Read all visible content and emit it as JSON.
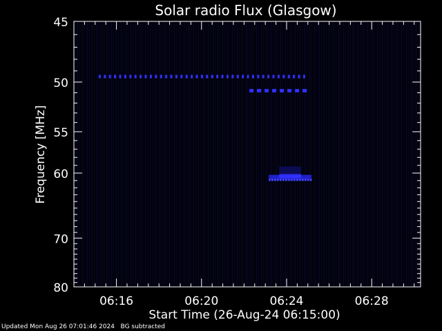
{
  "chart_data": {
    "type": "heatmap",
    "title": "Solar radio Flux (Glasgow)",
    "xlabel": "Start Time (26-Aug-24 06:15:00)",
    "ylabel": "Frequency [MHz]",
    "xlim_minutes_after_0615": [
      -1,
      15.3
    ],
    "x_tick_labels": [
      "06:16",
      "06:20",
      "06:24",
      "06:28"
    ],
    "x_tick_minutes_after_0615": [
      1,
      5,
      9,
      13
    ],
    "ylim": [
      45,
      80
    ],
    "y_scale": "reciprocal",
    "y_ticks": [
      45,
      50,
      55,
      60,
      70,
      80
    ],
    "background_color": "#000000",
    "emission_color": "#3030ff",
    "features": [
      {
        "label": "",
        "freq_mhz": 49.5,
        "start": "06:15:10",
        "end": "06:25:00",
        "pattern": "dashed"
      },
      {
        "label": "",
        "freq_mhz": 50.8,
        "start": "06:22:15",
        "end": "06:25:00",
        "pattern": "dashed"
      },
      {
        "label": "",
        "freq_mhz": 60.6,
        "start": "06:23:10",
        "end": "06:25:10",
        "pattern": "burst"
      }
    ]
  },
  "footer": {
    "updated": "Updated Mon Aug 26 07:01:46 2024",
    "note": "BG subtracted"
  }
}
